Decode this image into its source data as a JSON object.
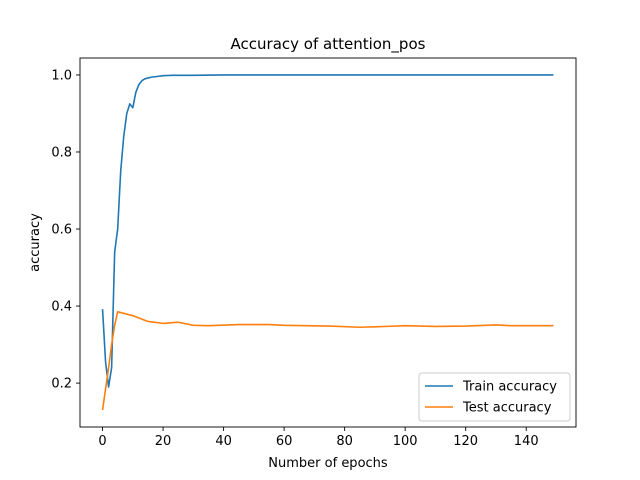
{
  "chart_data": {
    "type": "line",
    "title": "Accuracy of attention_pos",
    "xlabel": "Number of epochs",
    "ylabel": "accuracy",
    "xlim": [
      -7.45,
      156.45
    ],
    "ylim": [
      0.086,
      1.044
    ],
    "xticks": [
      0,
      20,
      40,
      60,
      80,
      100,
      120,
      140
    ],
    "yticks": [
      0.2,
      0.4,
      0.6,
      0.8,
      1.0
    ],
    "ytick_labels": [
      "0.2",
      "0.4",
      "0.6",
      "0.8",
      "1.0"
    ],
    "grid": false,
    "legend_position": "lower right",
    "series": [
      {
        "name": "Train accuracy",
        "color": "#1f77b4",
        "x": [
          0,
          1,
          2,
          3,
          4,
          5,
          6,
          7,
          8,
          9,
          10,
          11,
          12,
          13,
          14,
          16,
          18,
          20,
          23,
          26,
          30,
          40,
          50,
          60,
          80,
          100,
          120,
          140,
          149
        ],
        "y": [
          0.392,
          0.255,
          0.19,
          0.24,
          0.54,
          0.6,
          0.75,
          0.84,
          0.9,
          0.925,
          0.915,
          0.955,
          0.975,
          0.985,
          0.99,
          0.994,
          0.996,
          0.998,
          0.999,
          0.999,
          0.999,
          1.0,
          1.0,
          1.0,
          1.0,
          1.0,
          1.0,
          1.0,
          1.0
        ]
      },
      {
        "name": "Test accuracy",
        "color": "#ff7f0e",
        "x": [
          0,
          2,
          3,
          4,
          5,
          10,
          15,
          20,
          25,
          30,
          35,
          45,
          55,
          60,
          75,
          85,
          90,
          100,
          110,
          120,
          130,
          135,
          140,
          149
        ],
        "y": [
          0.13,
          0.24,
          0.3,
          0.35,
          0.385,
          0.375,
          0.36,
          0.355,
          0.358,
          0.35,
          0.349,
          0.352,
          0.352,
          0.35,
          0.348,
          0.345,
          0.346,
          0.349,
          0.347,
          0.348,
          0.351,
          0.349,
          0.349,
          0.349
        ]
      }
    ]
  }
}
